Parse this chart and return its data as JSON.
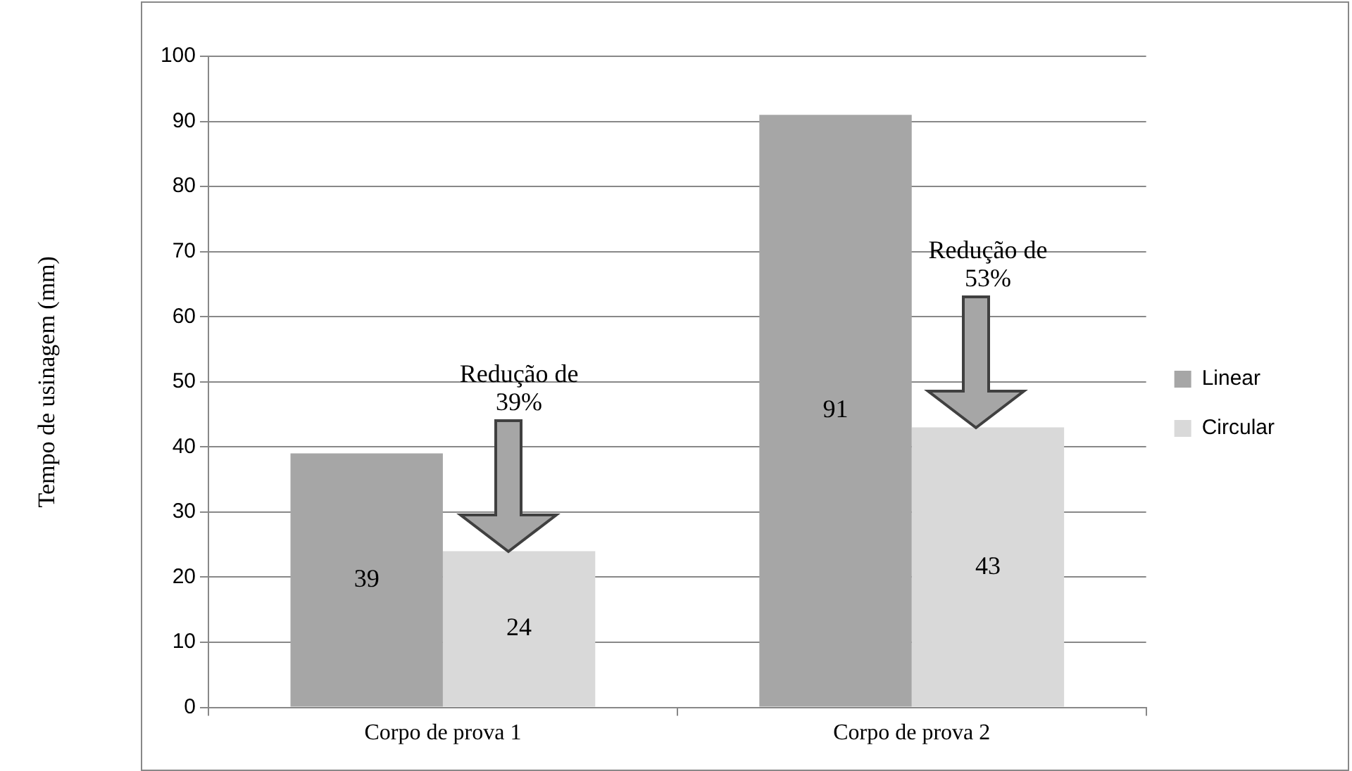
{
  "chart_data": {
    "type": "bar",
    "ylabel": "Tempo de usinagem (mm)",
    "categories": [
      "Corpo de prova 1",
      "Corpo de prova 2"
    ],
    "series": [
      {
        "name": "Linear",
        "color": "#a6a6a6",
        "values": [
          39,
          91
        ]
      },
      {
        "name": "Circular",
        "color": "#d9d9d9",
        "values": [
          24,
          43
        ]
      }
    ],
    "ylim": [
      0,
      100
    ],
    "yticks": [
      0,
      10,
      20,
      30,
      40,
      50,
      60,
      70,
      80,
      90,
      100
    ],
    "grid": "y",
    "legend": "right",
    "data_labels": true,
    "annotations": [
      "Redução de 39%",
      "Redução de 53%"
    ]
  }
}
